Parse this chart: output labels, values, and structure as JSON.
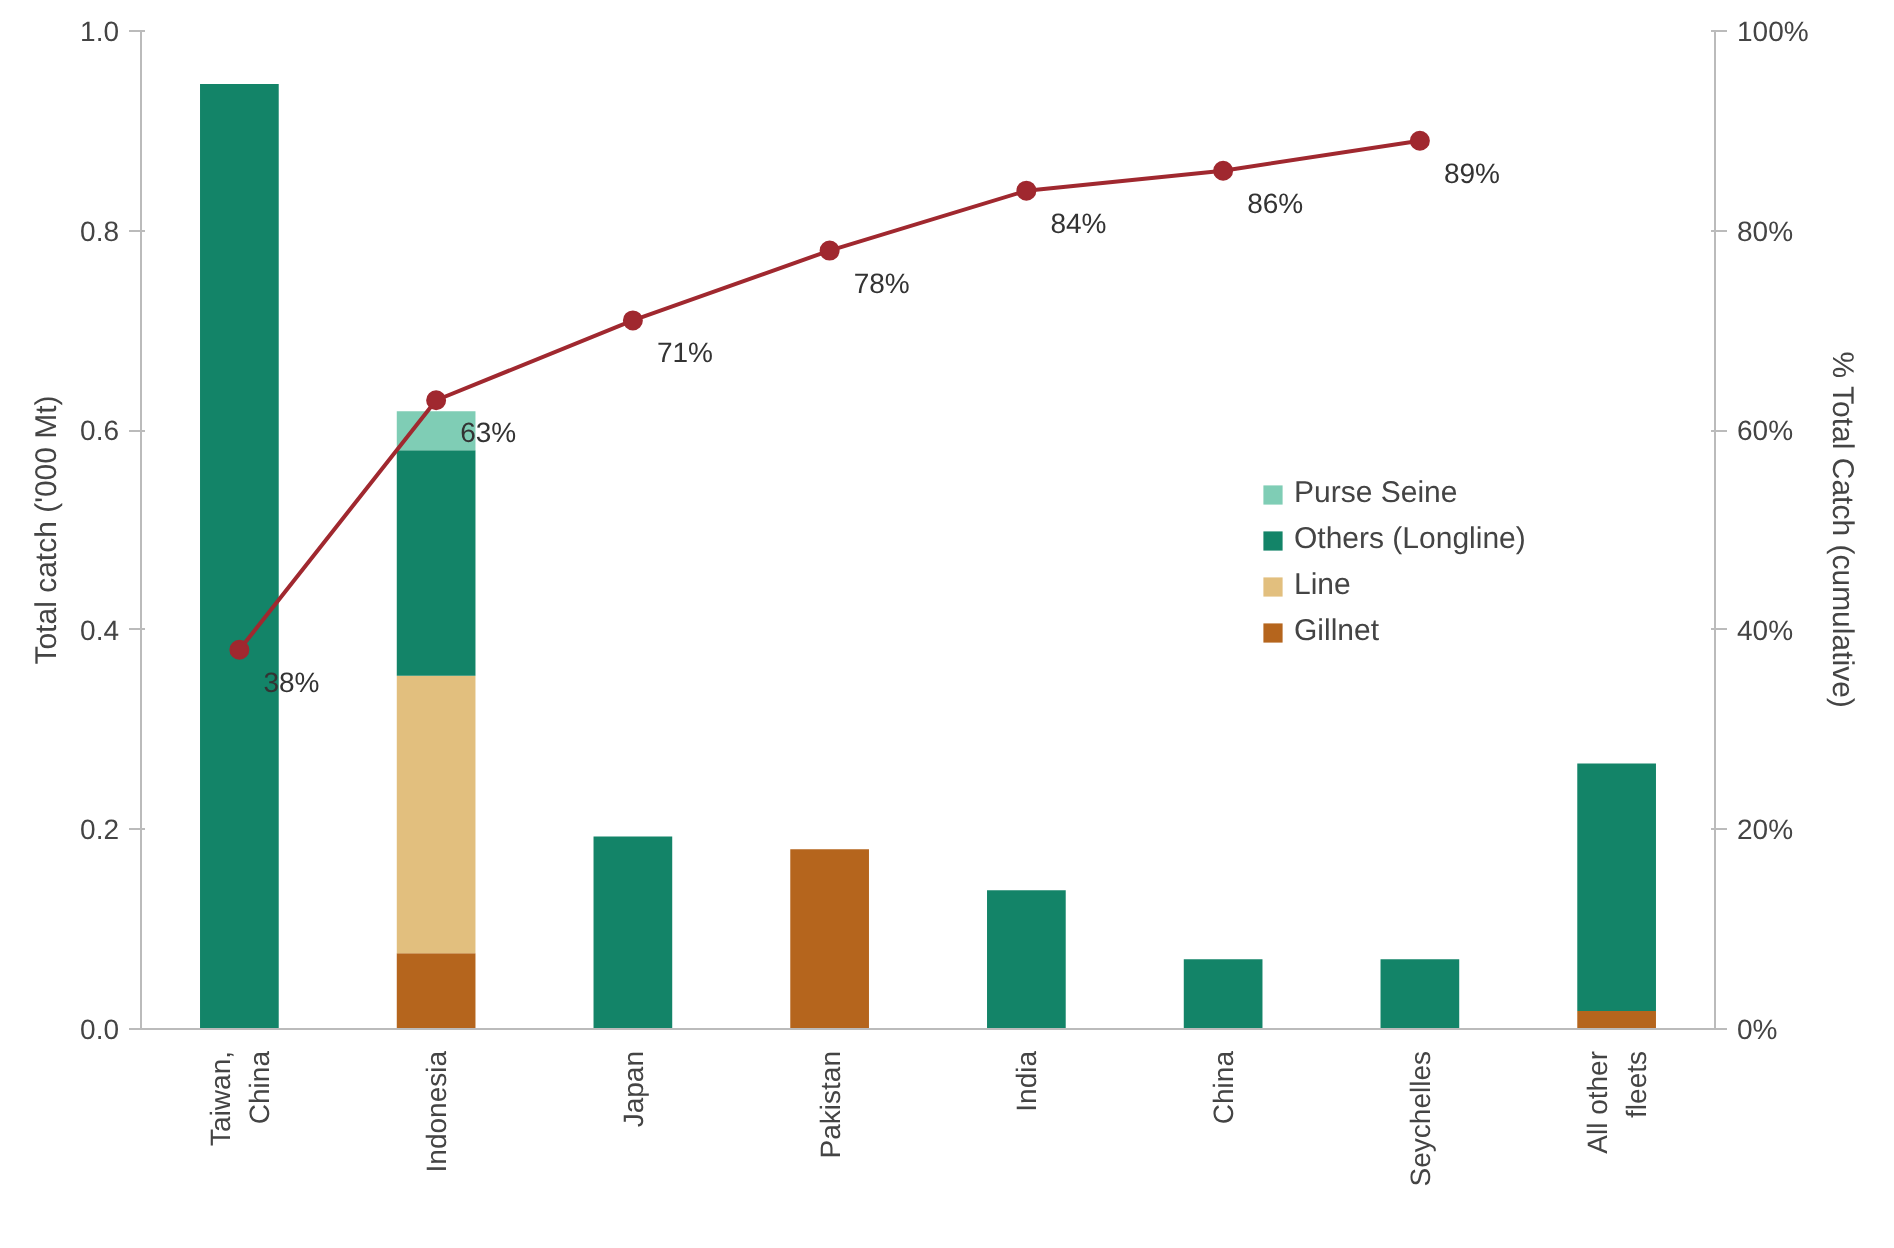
{
  "chart_data": {
    "type": "bar",
    "stacked": true,
    "categories": [
      "Taiwan,\nChina",
      "Indonesia",
      "Japan",
      "Pakistan",
      "India",
      "China",
      "Seychelles",
      "All other\nfleets"
    ],
    "ylabel": "Total catch ('000 Mt)",
    "y2label": "% Total Catch (cumulative)",
    "ylim": [
      0,
      1.0
    ],
    "yticks": [
      {
        "value": 0,
        "label": "0.0"
      },
      0.2,
      0.4,
      0.6,
      0.8,
      {
        "value": 1.0,
        "label": "1.0"
      }
    ],
    "y2lim": [
      0,
      100
    ],
    "y2ticks": [
      {
        "value": 0,
        "label": "0%"
      },
      {
        "value": 20,
        "label": "20%"
      },
      {
        "value": 40,
        "label": "40%"
      },
      {
        "value": 60,
        "label": "60%"
      },
      {
        "value": 80,
        "label": "80%"
      },
      {
        "value": 100,
        "label": "100%"
      }
    ],
    "series": [
      {
        "name": "Gillnet",
        "color": "#b5651d",
        "values": [
          0,
          0.076,
          0,
          0.18,
          0,
          0,
          0,
          0.018
        ]
      },
      {
        "name": "Line",
        "color": "#e2bf7e",
        "values": [
          0,
          0.278,
          0,
          0,
          0,
          0,
          0,
          0
        ]
      },
      {
        "name": "Others (Longline)",
        "color": "#138468",
        "values": [
          0.947,
          0.226,
          0.193,
          0,
          0.139,
          0.07,
          0.07,
          0.248
        ]
      },
      {
        "name": "Purse Seine",
        "color": "#7fcdb5",
        "values": [
          0,
          0.039,
          0,
          0,
          0,
          0,
          0,
          0
        ]
      },
      {
        "type": "line",
        "axis": "y2",
        "color": "#a0282f",
        "marker": "circle",
        "values": [
          38,
          63,
          71,
          78,
          84,
          86,
          89,
          null
        ],
        "value_labels": [
          "38%",
          "63%",
          "71%",
          "78%",
          "84%",
          "86%",
          "89%",
          null
        ]
      }
    ],
    "legend": "right",
    "grid": false
  }
}
